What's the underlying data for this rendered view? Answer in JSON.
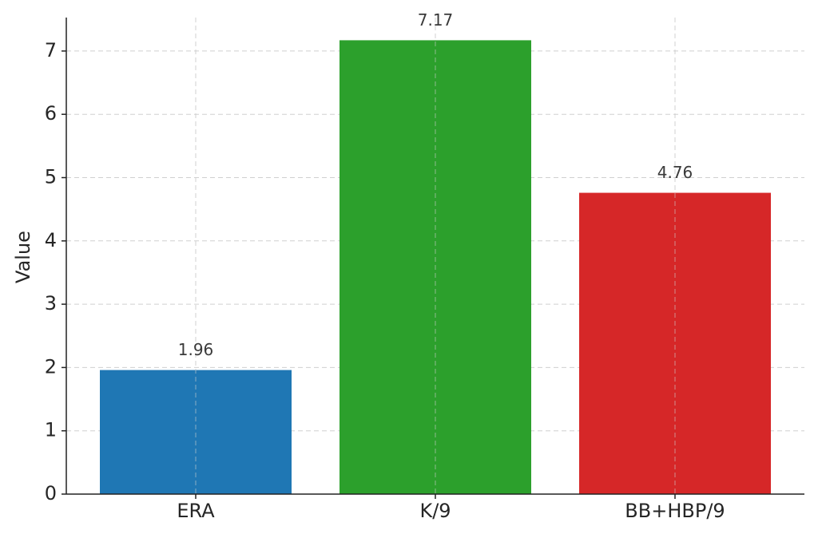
{
  "chart_data": {
    "type": "bar",
    "y_label": "Value",
    "categories": [
      "ERA",
      "K/9",
      "BB+HBP/9"
    ],
    "values": [
      1.96,
      7.17,
      4.76
    ],
    "colors": [
      "#1f77b4",
      "#2ca02c",
      "#d62728"
    ],
    "ylim": [
      0,
      7.5285
    ],
    "yticks": [
      0,
      1,
      2,
      3,
      4,
      5,
      6,
      7
    ],
    "grid": true
  }
}
